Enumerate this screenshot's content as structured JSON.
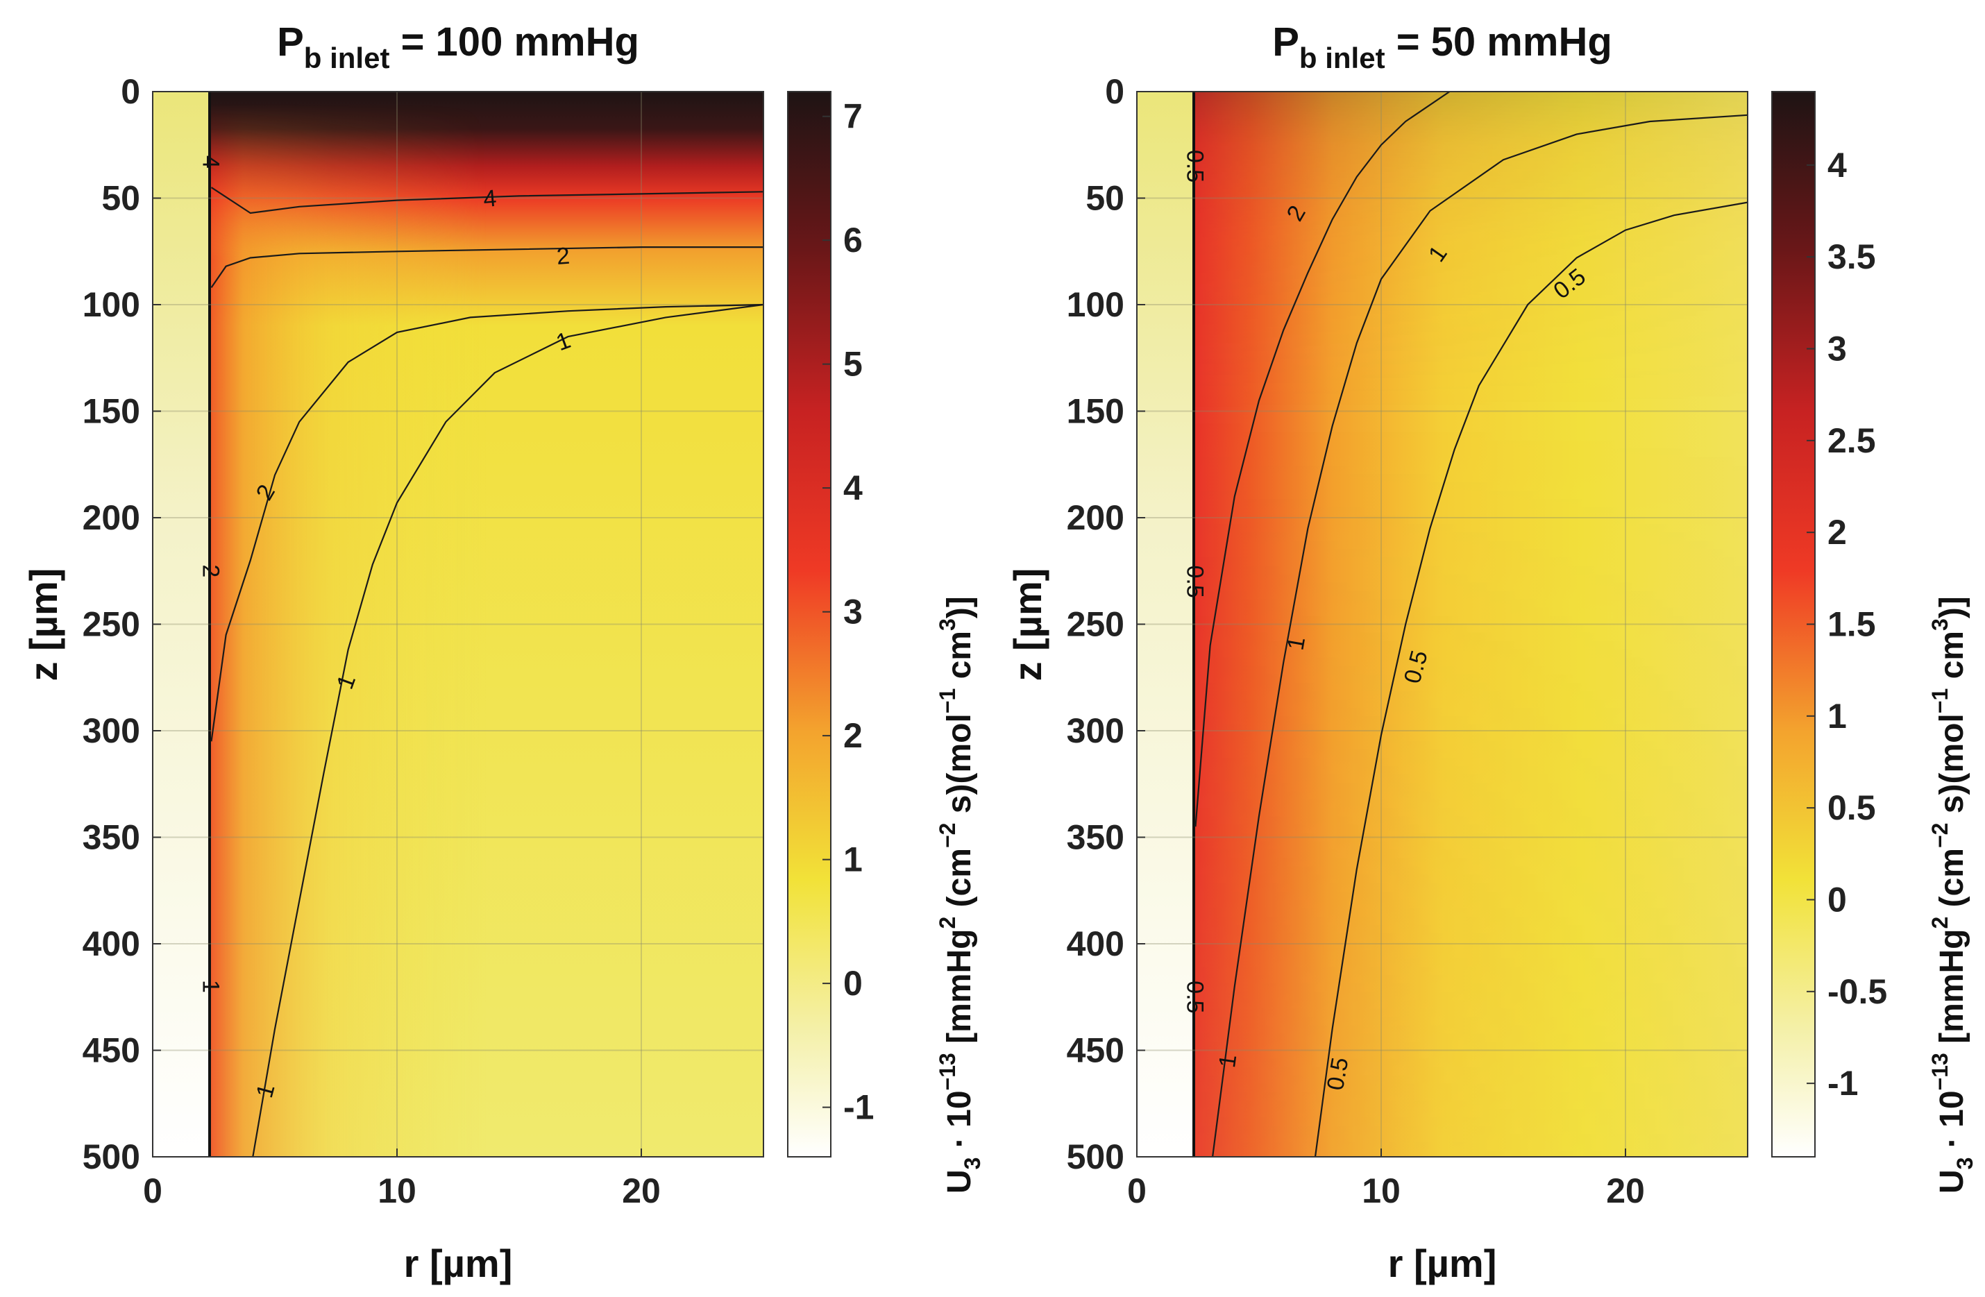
{
  "chart_data": [
    {
      "type": "heatmap",
      "title_main": "P",
      "title_sub": "b inlet",
      "title_rest": " = 100 mmHg",
      "xlabel": "r [µm]",
      "ylabel": "z [µm]",
      "xlim": [
        0,
        25
      ],
      "ylim": [
        500,
        0
      ],
      "x_ticks": [
        "0",
        "10",
        "20"
      ],
      "y_ticks": [
        "0",
        "50",
        "100",
        "150",
        "200",
        "250",
        "300",
        "350",
        "400",
        "450",
        "500"
      ],
      "vessel_wall_r": 2.4,
      "colorbar": {
        "range": [
          -1.4,
          7.2
        ],
        "ticks": [
          "-1",
          "0",
          "1",
          "2",
          "3",
          "4",
          "5",
          "6",
          "7"
        ],
        "label": "U3 · 10^-13 [mmHg^2 (cm^-2 s)(mol^-1 cm^3)]"
      },
      "contours": [
        {
          "level": "4",
          "points": [
            [
              2.4,
              45
            ],
            [
              4,
              57
            ],
            [
              6,
              54
            ],
            [
              10,
              51
            ],
            [
              15,
              49
            ],
            [
              20,
              48
            ],
            [
              25,
              47
            ]
          ]
        },
        {
          "level": "2",
          "points": [
            [
              2.4,
              92
            ],
            [
              3,
              82
            ],
            [
              4,
              78
            ],
            [
              6,
              76
            ],
            [
              10,
              75
            ],
            [
              15,
              74
            ],
            [
              20,
              73
            ],
            [
              25,
              73
            ]
          ]
        },
        {
          "level": "2",
          "points": [
            [
              2.4,
              305
            ],
            [
              3,
              255
            ],
            [
              4,
              220
            ],
            [
              5,
              180
            ],
            [
              6,
              155
            ],
            [
              8,
              127
            ],
            [
              10,
              113
            ],
            [
              13,
              106
            ],
            [
              17,
              103
            ],
            [
              21,
              101
            ],
            [
              25,
              100
            ]
          ]
        },
        {
          "level": "1",
          "points": [
            [
              4.1,
              500
            ],
            [
              5,
              440
            ],
            [
              6,
              380
            ],
            [
              7,
              320
            ],
            [
              8,
              262
            ],
            [
              9,
              222
            ],
            [
              10,
              193
            ],
            [
              12,
              155
            ],
            [
              14,
              132
            ],
            [
              17,
              115
            ],
            [
              21,
              106
            ],
            [
              25,
              100
            ]
          ]
        }
      ],
      "contour_labels": [
        {
          "text": "4",
          "r": 13.8,
          "z": 50,
          "rot": -5
        },
        {
          "text": "2",
          "r": 16.8,
          "z": 77,
          "rot": -4
        },
        {
          "text": "1",
          "r": 16.8,
          "z": 117,
          "rot": -20
        },
        {
          "text": "2",
          "r": 4.6,
          "z": 188,
          "rot": -60
        },
        {
          "text": "1",
          "r": 7.9,
          "z": 277,
          "rot": -70
        },
        {
          "text": "1",
          "r": 4.6,
          "z": 469,
          "rot": -75
        },
        {
          "text": "4",
          "r": 2.4,
          "z": 33,
          "rot": 90
        },
        {
          "text": "2",
          "r": 2.4,
          "z": 225,
          "rot": 90
        },
        {
          "text": "1",
          "r": 2.4,
          "z": 420,
          "rot": 90
        }
      ]
    },
    {
      "type": "heatmap",
      "title_main": "P",
      "title_sub": "b inlet",
      "title_rest": " = 50 mmHg",
      "xlabel": "r [µm]",
      "ylabel": "z [µm]",
      "xlim": [
        0,
        25
      ],
      "ylim": [
        500,
        0
      ],
      "x_ticks": [
        "0",
        "10",
        "20"
      ],
      "y_ticks": [
        "0",
        "50",
        "100",
        "150",
        "200",
        "250",
        "300",
        "350",
        "400",
        "450",
        "500"
      ],
      "vessel_wall_r": 2.4,
      "colorbar": {
        "range": [
          -1.4,
          4.4
        ],
        "ticks": [
          "-1",
          "-0.5",
          "0",
          "0.5",
          "1",
          "1.5",
          "2",
          "2.5",
          "3",
          "3.5",
          "4"
        ],
        "label": "U3 · 10^-13 [mmHg^2 (cm^-2 s)(mol^-1 cm^3)]"
      },
      "contours": [
        {
          "level": "2",
          "points": [
            [
              2.4,
              345
            ],
            [
              3,
              260
            ],
            [
              4,
              190
            ],
            [
              5,
              145
            ],
            [
              6,
              112
            ],
            [
              7,
              85
            ],
            [
              8,
              60
            ],
            [
              9,
              40
            ],
            [
              10,
              25
            ],
            [
              11,
              14
            ],
            [
              12.8,
              0
            ]
          ]
        },
        {
          "level": "1",
          "points": [
            [
              3.1,
              500
            ],
            [
              4,
              420
            ],
            [
              5,
              340
            ],
            [
              6,
              268
            ],
            [
              7,
              205
            ],
            [
              8,
              157
            ],
            [
              9,
              118
            ],
            [
              10,
              88
            ],
            [
              12,
              56
            ],
            [
              15,
              32
            ],
            [
              18,
              20
            ],
            [
              21,
              14
            ],
            [
              25,
              11
            ]
          ]
        },
        {
          "level": "0.5",
          "points": [
            [
              7.3,
              500
            ],
            [
              8,
              440
            ],
            [
              9,
              365
            ],
            [
              10,
              302
            ],
            [
              11,
              250
            ],
            [
              12,
              205
            ],
            [
              13,
              168
            ],
            [
              14,
              138
            ],
            [
              16,
              100
            ],
            [
              18,
              78
            ],
            [
              20,
              65
            ],
            [
              22,
              58
            ],
            [
              25,
              52
            ]
          ]
        }
      ],
      "contour_labels": [
        {
          "text": "2",
          "r": 6.5,
          "z": 57,
          "rot": -60
        },
        {
          "text": "1",
          "r": 12.3,
          "z": 76,
          "rot": -55
        },
        {
          "text": "0.5",
          "r": 17.7,
          "z": 90,
          "rot": -38
        },
        {
          "text": "1",
          "r": 6.5,
          "z": 259,
          "rot": -80
        },
        {
          "text": "0.5",
          "r": 11.4,
          "z": 270,
          "rot": -75
        },
        {
          "text": "1",
          "r": 3.7,
          "z": 455,
          "rot": -82
        },
        {
          "text": "0.5",
          "r": 8.2,
          "z": 461,
          "rot": -80
        },
        {
          "text": "0.5",
          "r": 2.4,
          "z": 35,
          "rot": 90
        },
        {
          "text": "0.5",
          "r": 2.4,
          "z": 230,
          "rot": 90
        },
        {
          "text": "0.5",
          "r": 2.4,
          "z": 425,
          "rot": 90
        }
      ]
    }
  ]
}
